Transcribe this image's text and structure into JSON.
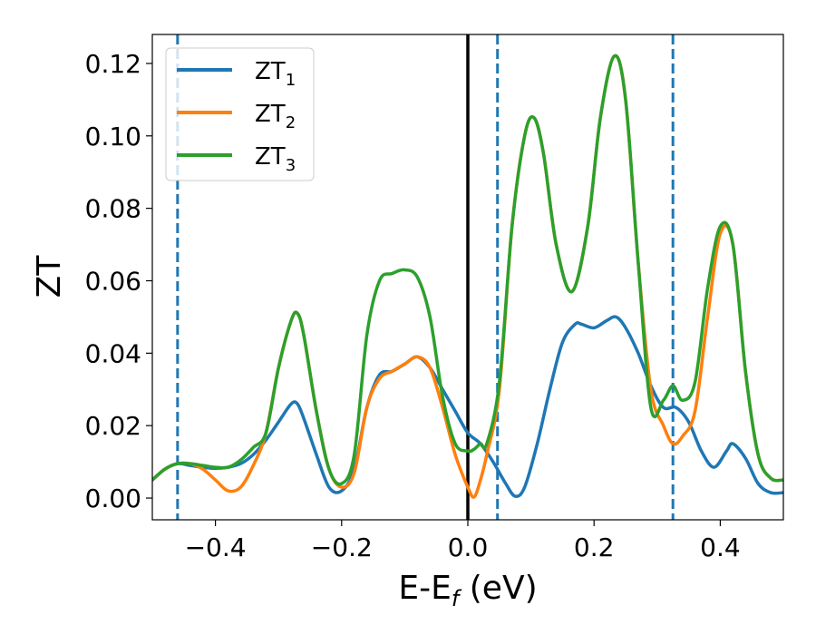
{
  "chart_data": {
    "type": "line",
    "xlabel": {
      "main": "E-E",
      "sub": "f",
      "suffix": " (eV)"
    },
    "ylabel": "ZT",
    "xlim": [
      -0.5,
      0.5
    ],
    "ylim": [
      -0.006,
      0.128
    ],
    "xticks": [
      -0.4,
      -0.2,
      0.0,
      0.2,
      0.4
    ],
    "xtick_labels": [
      "−0.4",
      "−0.2",
      "0.0",
      "0.2",
      "0.4"
    ],
    "yticks": [
      0.0,
      0.02,
      0.04,
      0.06,
      0.08,
      0.1,
      0.12
    ],
    "ytick_labels": [
      "0.00",
      "0.02",
      "0.04",
      "0.06",
      "0.08",
      "0.10",
      "0.12"
    ],
    "grid": false,
    "legend_position": "top-left",
    "vertical_lines": [
      {
        "x": -0.46,
        "style": "dashed",
        "color": "#1f77b4"
      },
      {
        "x": 0.0,
        "style": "solid",
        "color": "#000000"
      },
      {
        "x": 0.047,
        "style": "dashed",
        "color": "#1f77b4"
      },
      {
        "x": 0.325,
        "style": "dashed",
        "color": "#1f77b4"
      }
    ],
    "series": [
      {
        "name": "ZT",
        "sub": "1",
        "color": "#1f77b4",
        "x": [
          -0.5,
          -0.48,
          -0.46,
          -0.44,
          -0.42,
          -0.4,
          -0.38,
          -0.36,
          -0.34,
          -0.32,
          -0.3,
          -0.28,
          -0.27,
          -0.26,
          -0.24,
          -0.22,
          -0.2,
          -0.18,
          -0.16,
          -0.14,
          -0.12,
          -0.1,
          -0.08,
          -0.06,
          -0.04,
          -0.02,
          0.0,
          0.02,
          0.04,
          0.06,
          0.075,
          0.09,
          0.11,
          0.13,
          0.15,
          0.17,
          0.18,
          0.2,
          0.22,
          0.235,
          0.25,
          0.27,
          0.29,
          0.31,
          0.33,
          0.35,
          0.37,
          0.39,
          0.41,
          0.42,
          0.44,
          0.46,
          0.48,
          0.5
        ],
        "y": [
          0.005,
          0.008,
          0.0095,
          0.009,
          0.0085,
          0.0082,
          0.0085,
          0.0095,
          0.012,
          0.016,
          0.021,
          0.026,
          0.026,
          0.022,
          0.012,
          0.003,
          0.002,
          0.008,
          0.025,
          0.034,
          0.035,
          0.037,
          0.039,
          0.036,
          0.03,
          0.024,
          0.018,
          0.015,
          0.01,
          0.004,
          0.0005,
          0.003,
          0.015,
          0.03,
          0.043,
          0.048,
          0.048,
          0.047,
          0.049,
          0.05,
          0.047,
          0.04,
          0.031,
          0.025,
          0.025,
          0.021,
          0.013,
          0.0085,
          0.013,
          0.015,
          0.011,
          0.004,
          0.0015,
          0.0015
        ]
      },
      {
        "name": "ZT",
        "sub": "2",
        "color": "#ff7f0e",
        "x": [
          -0.5,
          -0.48,
          -0.46,
          -0.44,
          -0.42,
          -0.4,
          -0.38,
          -0.36,
          -0.34,
          -0.32,
          -0.3,
          -0.28,
          -0.27,
          -0.26,
          -0.24,
          -0.22,
          -0.2,
          -0.18,
          -0.16,
          -0.14,
          -0.12,
          -0.1,
          -0.08,
          -0.06,
          -0.04,
          -0.02,
          0.0,
          0.01,
          0.02,
          0.03,
          0.05,
          0.07,
          0.09,
          0.105,
          0.12,
          0.14,
          0.165,
          0.19,
          0.21,
          0.232,
          0.25,
          0.27,
          0.29,
          0.31,
          0.325,
          0.34,
          0.36,
          0.38,
          0.4,
          0.42,
          0.44,
          0.46,
          0.48,
          0.5
        ],
        "y": [
          0.005,
          0.008,
          0.0095,
          0.0095,
          0.008,
          0.005,
          0.002,
          0.003,
          0.009,
          0.018,
          0.036,
          0.049,
          0.051,
          0.045,
          0.024,
          0.008,
          0.003,
          0.007,
          0.025,
          0.033,
          0.035,
          0.037,
          0.039,
          0.036,
          0.025,
          0.012,
          0.003,
          0.0003,
          0.005,
          0.012,
          0.03,
          0.075,
          0.1,
          0.105,
          0.095,
          0.07,
          0.057,
          0.075,
          0.105,
          0.122,
          0.11,
          0.065,
          0.03,
          0.02,
          0.015,
          0.017,
          0.024,
          0.05,
          0.073,
          0.07,
          0.035,
          0.012,
          0.0055,
          0.005
        ]
      },
      {
        "name": "ZT",
        "sub": "3",
        "color": "#2ca02c",
        "x": [
          -0.5,
          -0.48,
          -0.46,
          -0.44,
          -0.42,
          -0.4,
          -0.38,
          -0.36,
          -0.34,
          -0.32,
          -0.3,
          -0.28,
          -0.27,
          -0.26,
          -0.24,
          -0.22,
          -0.2,
          -0.18,
          -0.16,
          -0.14,
          -0.12,
          -0.1,
          -0.08,
          -0.06,
          -0.04,
          -0.02,
          0.0,
          0.01,
          0.02,
          0.03,
          0.05,
          0.07,
          0.09,
          0.105,
          0.12,
          0.14,
          0.165,
          0.19,
          0.21,
          0.232,
          0.25,
          0.27,
          0.29,
          0.31,
          0.325,
          0.34,
          0.36,
          0.38,
          0.4,
          0.42,
          0.44,
          0.46,
          0.48,
          0.5
        ],
        "y": [
          0.005,
          0.008,
          0.0095,
          0.0095,
          0.009,
          0.0085,
          0.0085,
          0.0105,
          0.014,
          0.018,
          0.036,
          0.049,
          0.051,
          0.045,
          0.024,
          0.008,
          0.004,
          0.012,
          0.045,
          0.06,
          0.062,
          0.063,
          0.061,
          0.05,
          0.028,
          0.015,
          0.013,
          0.0135,
          0.015,
          0.015,
          0.032,
          0.075,
          0.1,
          0.105,
          0.095,
          0.07,
          0.057,
          0.075,
          0.105,
          0.122,
          0.11,
          0.065,
          0.025,
          0.027,
          0.031,
          0.027,
          0.032,
          0.058,
          0.075,
          0.07,
          0.035,
          0.012,
          0.0055,
          0.005
        ]
      }
    ]
  }
}
